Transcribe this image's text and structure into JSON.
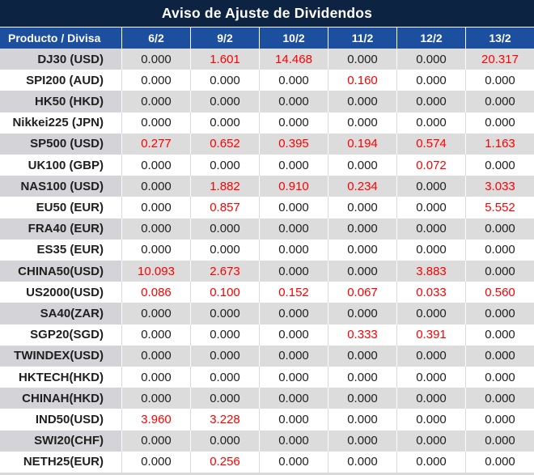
{
  "colors": {
    "title_bar_navy": "#0c2342",
    "header_blue": "#1d4f9f",
    "adjustment_red": "#ff0000",
    "row_alt_gray": "#dcdcdc",
    "product_cell_gray": "#d3d3d8",
    "text_black": "#1f1f1f"
  },
  "chart_data": {
    "type": "table",
    "title": "Aviso de Ajuste de Dividendos",
    "columns": [
      "Producto / Divisa",
      "6/2",
      "9/2",
      "10/2",
      "11/2",
      "12/2",
      "13/2"
    ],
    "rows": [
      {
        "product": "DJ30 (USD)",
        "values": [
          "0.000",
          "1.601",
          "14.468",
          "0.000",
          "0.000",
          "20.317"
        ],
        "red": [
          false,
          true,
          true,
          false,
          false,
          true
        ]
      },
      {
        "product": "SPI200 (AUD)",
        "values": [
          "0.000",
          "0.000",
          "0.000",
          "0.160",
          "0.000",
          "0.000"
        ],
        "red": [
          false,
          false,
          false,
          true,
          false,
          false
        ]
      },
      {
        "product": "HK50 (HKD)",
        "values": [
          "0.000",
          "0.000",
          "0.000",
          "0.000",
          "0.000",
          "0.000"
        ],
        "red": [
          false,
          false,
          false,
          false,
          false,
          false
        ]
      },
      {
        "product": "Nikkei225 (JPN)",
        "values": [
          "0.000",
          "0.000",
          "0.000",
          "0.000",
          "0.000",
          "0.000"
        ],
        "red": [
          false,
          false,
          false,
          false,
          false,
          false
        ]
      },
      {
        "product": "SP500 (USD)",
        "values": [
          "0.277",
          "0.652",
          "0.395",
          "0.194",
          "0.574",
          "1.163"
        ],
        "red": [
          true,
          true,
          true,
          true,
          true,
          true
        ]
      },
      {
        "product": "UK100 (GBP)",
        "values": [
          "0.000",
          "0.000",
          "0.000",
          "0.000",
          "0.072",
          "0.000"
        ],
        "red": [
          false,
          false,
          false,
          false,
          true,
          false
        ]
      },
      {
        "product": "NAS100 (USD)",
        "values": [
          "0.000",
          "1.882",
          "0.910",
          "0.234",
          "0.000",
          "3.033"
        ],
        "red": [
          false,
          true,
          true,
          true,
          false,
          true
        ]
      },
      {
        "product": "EU50 (EUR)",
        "values": [
          "0.000",
          "0.857",
          "0.000",
          "0.000",
          "0.000",
          "5.552"
        ],
        "red": [
          false,
          true,
          false,
          false,
          false,
          true
        ]
      },
      {
        "product": "FRA40 (EUR)",
        "values": [
          "0.000",
          "0.000",
          "0.000",
          "0.000",
          "0.000",
          "0.000"
        ],
        "red": [
          false,
          false,
          false,
          false,
          false,
          false
        ]
      },
      {
        "product": "ES35 (EUR)",
        "values": [
          "0.000",
          "0.000",
          "0.000",
          "0.000",
          "0.000",
          "0.000"
        ],
        "red": [
          false,
          false,
          false,
          false,
          false,
          false
        ]
      },
      {
        "product": "CHINA50(USD)",
        "values": [
          "10.093",
          "2.673",
          "0.000",
          "0.000",
          "3.883",
          "0.000"
        ],
        "red": [
          true,
          true,
          false,
          false,
          true,
          false
        ]
      },
      {
        "product": "US2000(USD)",
        "values": [
          "0.086",
          "0.100",
          "0.152",
          "0.067",
          "0.033",
          "0.560"
        ],
        "red": [
          true,
          true,
          true,
          true,
          true,
          true
        ]
      },
      {
        "product": "SA40(ZAR)",
        "values": [
          "0.000",
          "0.000",
          "0.000",
          "0.000",
          "0.000",
          "0.000"
        ],
        "red": [
          false,
          false,
          false,
          false,
          false,
          false
        ]
      },
      {
        "product": "SGP20(SGD)",
        "values": [
          "0.000",
          "0.000",
          "0.000",
          "0.333",
          "0.391",
          "0.000"
        ],
        "red": [
          false,
          false,
          false,
          true,
          true,
          false
        ]
      },
      {
        "product": "TWINDEX(USD)",
        "values": [
          "0.000",
          "0.000",
          "0.000",
          "0.000",
          "0.000",
          "0.000"
        ],
        "red": [
          false,
          false,
          false,
          false,
          false,
          false
        ]
      },
      {
        "product": "HKTECH(HKD)",
        "values": [
          "0.000",
          "0.000",
          "0.000",
          "0.000",
          "0.000",
          "0.000"
        ],
        "red": [
          false,
          false,
          false,
          false,
          false,
          false
        ]
      },
      {
        "product": "CHINAH(HKD)",
        "values": [
          "0.000",
          "0.000",
          "0.000",
          "0.000",
          "0.000",
          "0.000"
        ],
        "red": [
          false,
          false,
          false,
          false,
          false,
          false
        ]
      },
      {
        "product": "IND50(USD)",
        "values": [
          "3.960",
          "3.228",
          "0.000",
          "0.000",
          "0.000",
          "0.000"
        ],
        "red": [
          true,
          true,
          false,
          false,
          false,
          false
        ]
      },
      {
        "product": "SWI20(CHF)",
        "values": [
          "0.000",
          "0.000",
          "0.000",
          "0.000",
          "0.000",
          "0.000"
        ],
        "red": [
          false,
          false,
          false,
          false,
          false,
          false
        ]
      },
      {
        "product": "NETH25(EUR)",
        "values": [
          "0.000",
          "0.256",
          "0.000",
          "0.000",
          "0.000",
          "0.000"
        ],
        "red": [
          false,
          true,
          false,
          false,
          false,
          false
        ]
      }
    ]
  }
}
